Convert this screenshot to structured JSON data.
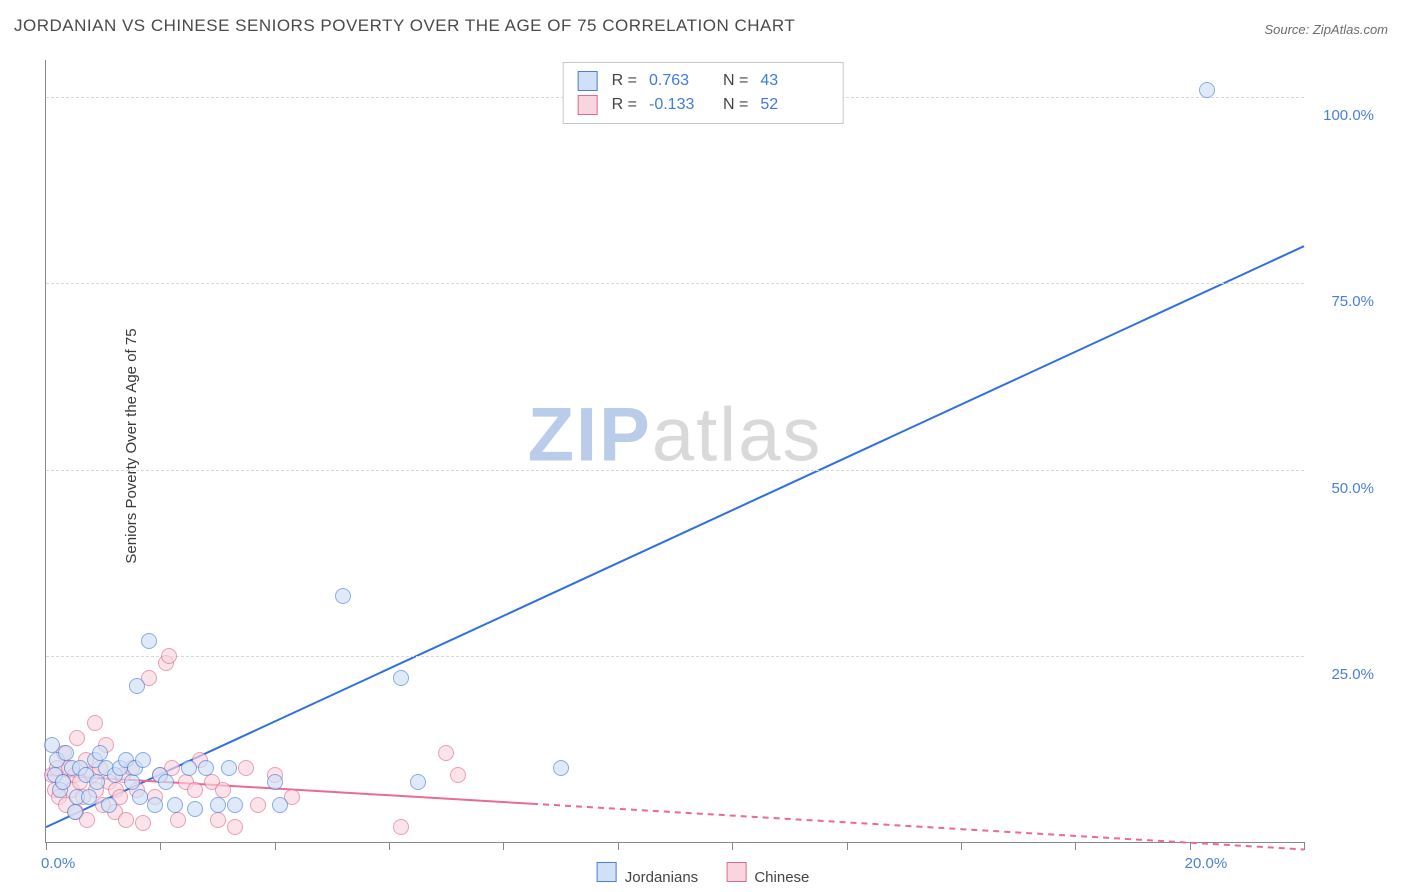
{
  "title": "JORDANIAN VS CHINESE SENIORS POVERTY OVER THE AGE OF 75 CORRELATION CHART",
  "source": "Source: ZipAtlas.com",
  "ylabel": "Seniors Poverty Over the Age of 75",
  "watermark": {
    "left": "ZIP",
    "right": "atlas"
  },
  "chart": {
    "type": "scatter_with_regression",
    "background_color": "#ffffff",
    "grid_color": "#d8d8d8",
    "axis_color": "#888888",
    "tick_label_color": "#4a7fd6",
    "tick_fontsize": 15,
    "xlim": [
      0,
      22
    ],
    "ylim": [
      0,
      105
    ],
    "x_ticks": [
      0,
      2,
      4,
      6,
      8,
      10,
      12,
      14,
      16,
      18,
      20,
      22
    ],
    "x_tick_labels": {
      "0": "0.0%",
      "20": "20.0%"
    },
    "y_gridlines": [
      25,
      50,
      75,
      100
    ],
    "y_tick_labels": {
      "25": "25.0%",
      "50": "50.0%",
      "75": "75.0%",
      "100": "100.0%"
    },
    "point_radius": 7,
    "point_stroke_width": 1.3,
    "series": [
      {
        "name": "Jordanians",
        "fill": "#cfe0f7",
        "stroke": "#4a7fd6",
        "fill_opacity": 0.65,
        "stats": {
          "R": "0.763",
          "N": "43"
        },
        "regression": {
          "x1": 0,
          "y1": 2,
          "x2": 22,
          "y2": 80,
          "color": "#2f6fe0",
          "width": 2,
          "dash_after_x": null
        },
        "points": [
          [
            0.1,
            13
          ],
          [
            0.15,
            9
          ],
          [
            0.2,
            11
          ],
          [
            0.25,
            7
          ],
          [
            0.3,
            8
          ],
          [
            0.35,
            12
          ],
          [
            0.45,
            10
          ],
          [
            0.5,
            4
          ],
          [
            0.55,
            6
          ],
          [
            0.6,
            10
          ],
          [
            0.7,
            9
          ],
          [
            0.75,
            6
          ],
          [
            0.85,
            11
          ],
          [
            0.9,
            8
          ],
          [
            0.95,
            12
          ],
          [
            1.05,
            10
          ],
          [
            1.1,
            5
          ],
          [
            1.2,
            9
          ],
          [
            1.3,
            10
          ],
          [
            1.4,
            11
          ],
          [
            1.5,
            8
          ],
          [
            1.55,
            10
          ],
          [
            1.6,
            21
          ],
          [
            1.65,
            6
          ],
          [
            1.7,
            11
          ],
          [
            1.8,
            27
          ],
          [
            1.9,
            5
          ],
          [
            2.0,
            9
          ],
          [
            2.1,
            8
          ],
          [
            2.25,
            5
          ],
          [
            2.5,
            10
          ],
          [
            2.6,
            4.5
          ],
          [
            2.8,
            10
          ],
          [
            3.0,
            5
          ],
          [
            3.2,
            10
          ],
          [
            3.3,
            5
          ],
          [
            4.0,
            8
          ],
          [
            4.1,
            5
          ],
          [
            5.2,
            33
          ],
          [
            6.2,
            22
          ],
          [
            6.5,
            8
          ],
          [
            9.0,
            10
          ],
          [
            20.3,
            101
          ]
        ]
      },
      {
        "name": "Chinese",
        "fill": "#f9d5df",
        "stroke": "#e06b8f",
        "fill_opacity": 0.65,
        "stats": {
          "R": "-0.133",
          "N": "52"
        },
        "regression": {
          "x1": 0,
          "y1": 9,
          "x2": 22,
          "y2": -1,
          "color": "#ec6a8f",
          "width": 2,
          "dash_after_x": 8.5
        },
        "points": [
          [
            0.1,
            9
          ],
          [
            0.15,
            7
          ],
          [
            0.2,
            10
          ],
          [
            0.22,
            6
          ],
          [
            0.3,
            8
          ],
          [
            0.32,
            12
          ],
          [
            0.35,
            5
          ],
          [
            0.4,
            10
          ],
          [
            0.45,
            7
          ],
          [
            0.5,
            9
          ],
          [
            0.52,
            4
          ],
          [
            0.55,
            14
          ],
          [
            0.6,
            8
          ],
          [
            0.65,
            6
          ],
          [
            0.7,
            11
          ],
          [
            0.72,
            3
          ],
          [
            0.8,
            9
          ],
          [
            0.85,
            16
          ],
          [
            0.88,
            7
          ],
          [
            0.95,
            10
          ],
          [
            1.0,
            5
          ],
          [
            1.05,
            13
          ],
          [
            1.1,
            8
          ],
          [
            1.2,
            4
          ],
          [
            1.22,
            7
          ],
          [
            1.3,
            6
          ],
          [
            1.35,
            9
          ],
          [
            1.4,
            3
          ],
          [
            1.5,
            10
          ],
          [
            1.6,
            7
          ],
          [
            1.7,
            2.5
          ],
          [
            1.8,
            22
          ],
          [
            1.9,
            6
          ],
          [
            2.0,
            9
          ],
          [
            2.1,
            24
          ],
          [
            2.15,
            25
          ],
          [
            2.2,
            10
          ],
          [
            2.3,
            3
          ],
          [
            2.45,
            8
          ],
          [
            2.6,
            7
          ],
          [
            2.7,
            11
          ],
          [
            2.9,
            8
          ],
          [
            3.0,
            3
          ],
          [
            3.1,
            7
          ],
          [
            3.3,
            2
          ],
          [
            3.5,
            10
          ],
          [
            3.7,
            5
          ],
          [
            4.0,
            9
          ],
          [
            4.3,
            6
          ],
          [
            6.2,
            2
          ],
          [
            7.0,
            12
          ],
          [
            7.2,
            9
          ]
        ]
      }
    ]
  },
  "stats_box": {
    "label_R": "R =",
    "label_N": "N ="
  },
  "bottom_legend": [
    "Jordanians",
    "Chinese"
  ]
}
